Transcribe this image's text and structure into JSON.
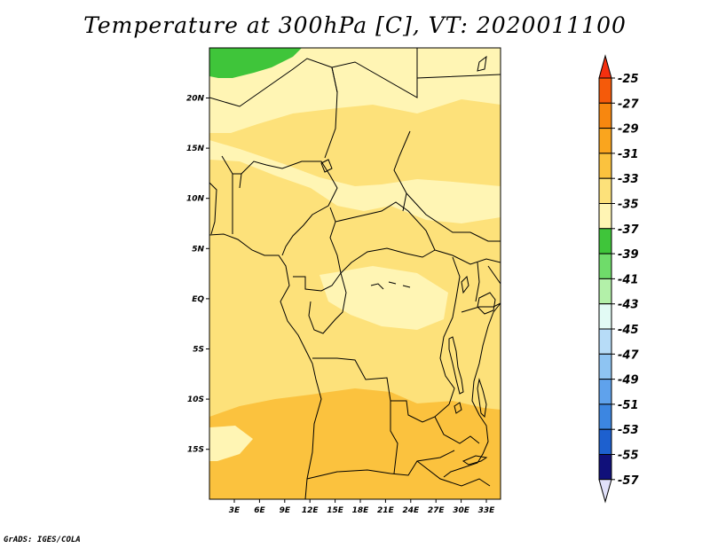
{
  "title": "Temperature at 300hPa [C], VT: 2020011100",
  "credit": "GrADS: IGES/COLA",
  "map": {
    "lon_labels": [
      "3E",
      "6E",
      "9E",
      "12E",
      "15E",
      "18E",
      "21E",
      "24E",
      "27E",
      "30E",
      "33E"
    ],
    "lat_labels": [
      "20N",
      "15N",
      "10N",
      "5N",
      "EQ",
      "5S",
      "10S",
      "15S"
    ]
  },
  "colorbar": {
    "levels": [
      {
        "label": "-25",
        "color": "#f55a0a"
      },
      {
        "label": "-27",
        "color": "#f7870f"
      },
      {
        "label": "-29",
        "color": "#faa51e"
      },
      {
        "label": "-31",
        "color": "#fbc23e"
      },
      {
        "label": "-33",
        "color": "#fde17a"
      },
      {
        "label": "-35",
        "color": "#fff5b4"
      },
      {
        "label": "-37",
        "color": "#3fc53a"
      },
      {
        "label": "-39",
        "color": "#6fdc6a"
      },
      {
        "label": "-41",
        "color": "#b3f0a9"
      },
      {
        "label": "-43",
        "color": "#e2fbf5"
      },
      {
        "label": "-45",
        "color": "#b7dcf7"
      },
      {
        "label": "-47",
        "color": "#8ec4f2"
      },
      {
        "label": "-49",
        "color": "#5fa2ec"
      },
      {
        "label": "-51",
        "color": "#3c86e1"
      },
      {
        "label": "-53",
        "color": "#1d60cf"
      },
      {
        "label": "-55",
        "color": "#1646b6"
      },
      {
        "label": "-57",
        "color": "#10107a"
      }
    ],
    "top_color": "#f4300f",
    "bottom_color": "#e1e1fa"
  },
  "fields": {
    "base": "#fde17a",
    "light": "#fff5b4",
    "dark": "#fbc23e",
    "green": "#3fc53a"
  }
}
